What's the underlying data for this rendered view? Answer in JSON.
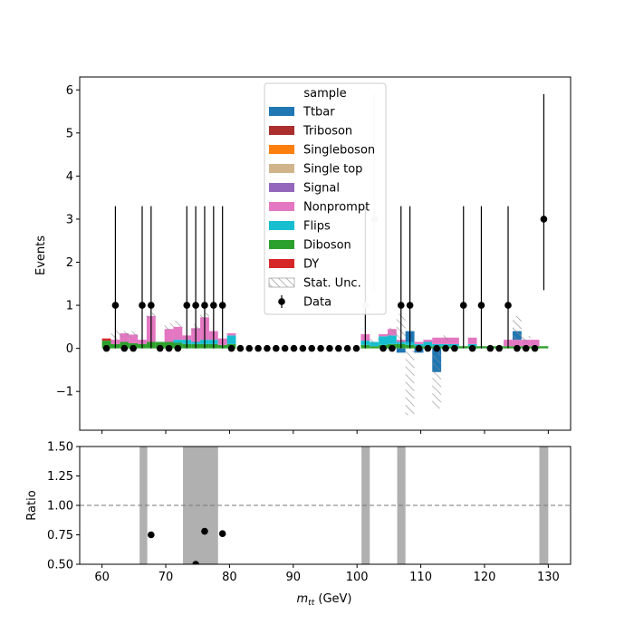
{
  "chart_data": [
    {
      "type": "bar",
      "subtype": "stacked-histogram",
      "ylabel": "Events",
      "ylim": [
        -1.9,
        6.3
      ],
      "xlim": [
        56.5,
        133.5
      ],
      "yticks": [
        -1,
        0,
        1,
        2,
        3,
        4,
        5,
        6
      ],
      "ytick_labels": [
        "−1",
        "0",
        "1",
        "2",
        "3",
        "4",
        "5",
        "6"
      ],
      "grid": false,
      "legend": {
        "title": "sample",
        "placement": "top-center",
        "entries": [
          {
            "label": "Ttbar",
            "color": "#1f77b4",
            "kind": "patch"
          },
          {
            "label": "Triboson",
            "color": "#ab2f2e",
            "kind": "patch"
          },
          {
            "label": "Singleboson",
            "color": "#ff7f0e",
            "kind": "patch"
          },
          {
            "label": "Single top",
            "color": "#d2b48c",
            "kind": "patch"
          },
          {
            "label": "Signal",
            "color": "#9467bd",
            "kind": "patch"
          },
          {
            "label": "Nonprompt",
            "color": "#e377c2",
            "kind": "patch"
          },
          {
            "label": "Flips",
            "color": "#17becf",
            "kind": "patch"
          },
          {
            "label": "Diboson",
            "color": "#2ca02c",
            "kind": "patch"
          },
          {
            "label": "DY",
            "color": "#d62728",
            "kind": "patch"
          },
          {
            "label": "Stat. Unc.",
            "color": "#888888",
            "kind": "hatch"
          },
          {
            "label": "Data",
            "color": "#000000",
            "kind": "errorbar"
          }
        ]
      },
      "bin_edges": [
        60.0,
        61.4,
        62.8,
        64.2,
        65.6,
        67.0,
        68.4,
        69.8,
        71.2,
        72.6,
        74.0,
        75.4,
        76.8,
        78.2,
        79.6,
        81.0,
        82.4,
        83.8,
        85.2,
        86.6,
        88.0,
        89.4,
        90.8,
        92.2,
        93.6,
        95.0,
        96.4,
        97.8,
        99.2,
        100.6,
        102.0,
        103.4,
        104.8,
        106.2,
        107.6,
        109.0,
        110.4,
        111.8,
        113.2,
        114.6,
        116.0,
        117.4,
        118.8,
        120.2,
        121.6,
        123.0,
        124.4,
        125.8,
        127.2,
        128.6,
        130.0
      ],
      "series": [
        {
          "name": "Diboson",
          "color": "#2ca02c",
          "values": [
            0.18,
            0.1,
            0.15,
            0.12,
            0.1,
            0.15,
            0.15,
            0.15,
            0.13,
            0.1,
            0.1,
            0.1,
            0.1,
            0.08,
            0.1,
            0,
            0,
            0,
            0,
            0,
            0,
            0,
            0,
            0,
            0,
            0,
            0,
            0,
            0,
            0.08,
            0.05,
            0.08,
            0.1,
            0.1,
            0.08,
            0.05,
            0.05,
            0.05,
            0.05,
            0.05,
            0.05,
            0.05,
            0.05,
            0.05,
            0.05,
            0.05,
            0.05,
            0.05,
            0.05,
            0.05
          ]
        },
        {
          "name": "Flips",
          "color": "#17becf",
          "values": [
            0.0,
            0.0,
            0.0,
            0.0,
            0.0,
            0.0,
            0.0,
            0.0,
            0.07,
            0.1,
            0.05,
            0.1,
            0.1,
            0.0,
            0.2,
            0,
            0,
            0,
            0,
            0,
            0,
            0,
            0,
            0,
            0,
            0,
            0,
            0,
            0,
            0.1,
            0.1,
            0.2,
            0.2,
            0.05,
            0.07,
            0.05,
            0.1,
            0.05,
            0.05,
            0.05,
            0.0,
            0.05,
            0.0,
            0.0,
            0.0,
            0.0,
            0.0,
            0.0,
            0.0,
            0.0
          ]
        },
        {
          "name": "Nonprompt",
          "color": "#e377c2",
          "values": [
            0.0,
            0.1,
            0.2,
            0.2,
            0.1,
            0.6,
            0.0,
            0.3,
            0.3,
            0.1,
            0.32,
            0.52,
            0.2,
            0.15,
            0.05,
            0,
            0,
            0,
            0,
            0,
            0,
            0,
            0,
            0,
            0,
            0,
            0,
            0,
            0,
            0.15,
            0.0,
            0.05,
            0.15,
            0.05,
            0.0,
            0.05,
            0.05,
            0.15,
            0.15,
            0.15,
            0.0,
            0.15,
            0.0,
            0.0,
            0.0,
            0.15,
            0.15,
            0.15,
            0.15,
            0.0
          ]
        },
        {
          "name": "DY",
          "color": "#d62728",
          "values": [
            0.05,
            0,
            0,
            0,
            0,
            0,
            0,
            0,
            0,
            0,
            0,
            0,
            0,
            0,
            0,
            0,
            0,
            0,
            0,
            0,
            0,
            0,
            0,
            0,
            0,
            0,
            0,
            0,
            0,
            0,
            0,
            0,
            0,
            0,
            0,
            0,
            0,
            0,
            0,
            0,
            0,
            0,
            0,
            0,
            0,
            0,
            0,
            0,
            0,
            0
          ]
        },
        {
          "name": "Ttbar",
          "color": "#1f77b4",
          "values": [
            0,
            0,
            0,
            0,
            0,
            0,
            0,
            0,
            0,
            0,
            0,
            0,
            0,
            0,
            0,
            0,
            0,
            0,
            0,
            0,
            0,
            0,
            0,
            0,
            0,
            0,
            0,
            0,
            0,
            0,
            0,
            0,
            0,
            -0.1,
            0.25,
            -0.1,
            0,
            -0.55,
            0,
            0,
            0,
            0,
            0,
            0,
            0,
            0,
            0.2,
            0,
            0,
            0
          ]
        },
        {
          "name": "Singleboson",
          "color": "#ff7f0e",
          "values": [
            0,
            0,
            0,
            0,
            0,
            0,
            0,
            0,
            0,
            0,
            0,
            0,
            0,
            0,
            0,
            0,
            0,
            0,
            0,
            0,
            0,
            0,
            0,
            0,
            0,
            0,
            0,
            0,
            0,
            0,
            0,
            0,
            0,
            0,
            0,
            0,
            0,
            0,
            0,
            0,
            0,
            0,
            0,
            0,
            0,
            0,
            0,
            0,
            0,
            0
          ]
        },
        {
          "name": "Triboson",
          "color": "#ab2f2e",
          "values": [
            0,
            0,
            0,
            0,
            0,
            0,
            0,
            0,
            0,
            0,
            0,
            0,
            0,
            0,
            0,
            0,
            0,
            0,
            0,
            0,
            0,
            0,
            0,
            0,
            0,
            0,
            0,
            0,
            0,
            0,
            0,
            0,
            0,
            0,
            0,
            0,
            0,
            0,
            0,
            0,
            0,
            0,
            0,
            0,
            0,
            0,
            0,
            0,
            0,
            0
          ]
        },
        {
          "name": "Single top",
          "color": "#d2b48c",
          "values": [
            0,
            0,
            0,
            0,
            0,
            0,
            0,
            0,
            0,
            0,
            0,
            0,
            0,
            0,
            0,
            0,
            0,
            0,
            0,
            0,
            0,
            0,
            0,
            0,
            0,
            0,
            0,
            0,
            0,
            0,
            0,
            0,
            0,
            0,
            0,
            0,
            0,
            0,
            0,
            0,
            0,
            0,
            0,
            0,
            0,
            0,
            0,
            0,
            0,
            0
          ]
        },
        {
          "name": "Signal",
          "color": "#9467bd",
          "values": [
            0,
            0,
            0,
            0,
            0,
            0,
            0,
            0,
            0,
            0,
            0,
            0,
            0,
            0,
            0,
            0,
            0,
            0,
            0,
            0,
            0,
            0,
            0,
            0,
            0,
            0,
            0,
            0,
            0,
            0,
            0,
            0,
            0,
            0,
            0,
            0,
            0,
            0,
            0,
            0,
            0,
            0,
            0,
            0,
            0,
            0,
            0,
            0,
            0,
            0
          ]
        }
      ],
      "stat_unc": [
        {
          "lo": 61.4,
          "hi": 62.8,
          "y0": 0.2,
          "y1": 0.42
        },
        {
          "lo": 62.8,
          "hi": 64.2,
          "y0": 0.25,
          "y1": 0.4
        },
        {
          "lo": 64.2,
          "hi": 65.6,
          "y0": 0.25,
          "y1": 0.4
        },
        {
          "lo": 67.0,
          "hi": 68.4,
          "y0": 0.7,
          "y1": 0.82
        },
        {
          "lo": 69.8,
          "hi": 71.2,
          "y0": 0.42,
          "y1": 0.58
        },
        {
          "lo": 71.2,
          "hi": 72.6,
          "y0": 0.5,
          "y1": 0.64
        },
        {
          "lo": 74.0,
          "hi": 75.4,
          "y0": 0.4,
          "y1": 0.55
        },
        {
          "lo": 75.4,
          "hi": 76.8,
          "y0": 0.68,
          "y1": 0.82
        },
        {
          "lo": 102.0,
          "hi": 103.4,
          "y0": 0.12,
          "y1": 0.22
        },
        {
          "lo": 104.8,
          "hi": 106.2,
          "y0": 0.3,
          "y1": 0.48
        },
        {
          "lo": 106.2,
          "hi": 107.6,
          "y0": 0.15,
          "y1": 0.8
        },
        {
          "lo": 107.6,
          "hi": 109.0,
          "y0": -1.55,
          "y1": -0.05
        },
        {
          "lo": 111.8,
          "hi": 113.2,
          "y0": -1.4,
          "y1": -0.1
        },
        {
          "lo": 113.2,
          "hi": 114.6,
          "y0": 0.18,
          "y1": 0.3
        },
        {
          "lo": 124.4,
          "hi": 125.8,
          "y0": 0.2,
          "y1": 0.75
        },
        {
          "lo": 125.8,
          "hi": 127.2,
          "y0": 0.15,
          "y1": 0.28
        }
      ],
      "data_points": [
        {
          "x": 60.7,
          "y": 0,
          "up": 0
        },
        {
          "x": 62.1,
          "y": 1,
          "up": 2.3
        },
        {
          "x": 63.5,
          "y": 0,
          "up": 0
        },
        {
          "x": 64.9,
          "y": 0,
          "up": 0
        },
        {
          "x": 66.3,
          "y": 1,
          "up": 2.3
        },
        {
          "x": 67.7,
          "y": 1,
          "up": 2.3
        },
        {
          "x": 69.1,
          "y": 0,
          "up": 0
        },
        {
          "x": 70.5,
          "y": 0,
          "up": 0
        },
        {
          "x": 71.9,
          "y": 0,
          "up": 0
        },
        {
          "x": 73.3,
          "y": 1,
          "up": 2.3
        },
        {
          "x": 74.7,
          "y": 1,
          "up": 2.3
        },
        {
          "x": 76.1,
          "y": 1,
          "up": 2.3
        },
        {
          "x": 77.5,
          "y": 1,
          "up": 2.3
        },
        {
          "x": 78.9,
          "y": 1,
          "up": 2.3
        },
        {
          "x": 80.3,
          "y": 0,
          "up": 0
        },
        {
          "x": 81.7,
          "y": 0,
          "up": 0
        },
        {
          "x": 83.1,
          "y": 0,
          "up": 0
        },
        {
          "x": 84.5,
          "y": 0,
          "up": 0
        },
        {
          "x": 85.9,
          "y": 0,
          "up": 0
        },
        {
          "x": 87.3,
          "y": 0,
          "up": 0
        },
        {
          "x": 88.7,
          "y": 0,
          "up": 0
        },
        {
          "x": 90.1,
          "y": 0,
          "up": 0
        },
        {
          "x": 91.5,
          "y": 0,
          "up": 0
        },
        {
          "x": 92.9,
          "y": 0,
          "up": 0
        },
        {
          "x": 94.3,
          "y": 0,
          "up": 0
        },
        {
          "x": 95.7,
          "y": 0,
          "up": 0
        },
        {
          "x": 97.1,
          "y": 0,
          "up": 0
        },
        {
          "x": 98.5,
          "y": 0,
          "up": 0
        },
        {
          "x": 99.9,
          "y": 0,
          "up": 0
        },
        {
          "x": 101.3,
          "y": 1,
          "up": 2.3
        },
        {
          "x": 102.7,
          "y": 3,
          "up": 2.9
        },
        {
          "x": 104.1,
          "y": 0,
          "up": 0
        },
        {
          "x": 105.5,
          "y": 0,
          "up": 0
        },
        {
          "x": 106.9,
          "y": 1,
          "up": 2.3
        },
        {
          "x": 108.3,
          "y": 1,
          "up": 2.3
        },
        {
          "x": 109.7,
          "y": 0,
          "up": 0
        },
        {
          "x": 111.1,
          "y": 0,
          "up": 0
        },
        {
          "x": 112.5,
          "y": 0,
          "up": 0
        },
        {
          "x": 113.9,
          "y": 0,
          "up": 0
        },
        {
          "x": 115.3,
          "y": 0,
          "up": 0
        },
        {
          "x": 116.7,
          "y": 1,
          "up": 2.3
        },
        {
          "x": 118.1,
          "y": 0,
          "up": 0
        },
        {
          "x": 119.5,
          "y": 1,
          "up": 2.3
        },
        {
          "x": 120.9,
          "y": 0,
          "up": 0
        },
        {
          "x": 122.3,
          "y": 0,
          "up": 0
        },
        {
          "x": 123.7,
          "y": 1,
          "up": 2.3
        },
        {
          "x": 125.1,
          "y": 0,
          "up": 0
        },
        {
          "x": 126.5,
          "y": 0,
          "up": 0
        },
        {
          "x": 127.9,
          "y": 0,
          "up": 0
        },
        {
          "x": 129.3,
          "y": 3,
          "up": 2.9
        }
      ]
    },
    {
      "type": "scatter",
      "subtype": "ratio-panel",
      "ylabel": "Ratio",
      "xlabel": "m_tt (GeV)",
      "xlim": [
        56.5,
        133.5
      ],
      "ylim": [
        0.5,
        1.5
      ],
      "xticks": [
        60,
        70,
        80,
        90,
        100,
        110,
        120,
        130
      ],
      "xtick_labels": [
        "60",
        "70",
        "80",
        "90",
        "100",
        "110",
        "120",
        "130"
      ],
      "yticks": [
        0.5,
        0.75,
        1.0,
        1.25,
        1.5
      ],
      "ytick_labels": [
        "0.50",
        "0.75",
        "1.00",
        "1.25",
        "1.50"
      ],
      "reference_line": 1.0,
      "grid": false,
      "gray_bands": [
        {
          "lo": 65.9,
          "hi": 67.1
        },
        {
          "lo": 72.7,
          "hi": 78.2
        },
        {
          "lo": 100.7,
          "hi": 102.0
        },
        {
          "lo": 106.3,
          "hi": 107.6
        },
        {
          "lo": 128.6,
          "hi": 130.0
        }
      ],
      "points": [
        {
          "x": 67.7,
          "y": 0.75
        },
        {
          "x": 74.7,
          "y": 0.5
        },
        {
          "x": 76.1,
          "y": 0.78
        },
        {
          "x": 78.9,
          "y": 0.76
        }
      ],
      "colors": {
        "band": "#b0b0b0",
        "point": "#000000",
        "refline": "#777777"
      }
    }
  ],
  "axis_text": {
    "xlabel_italic_main": "m",
    "xlabel_sub": "tt",
    "xlabel_unit": " (GeV)"
  }
}
